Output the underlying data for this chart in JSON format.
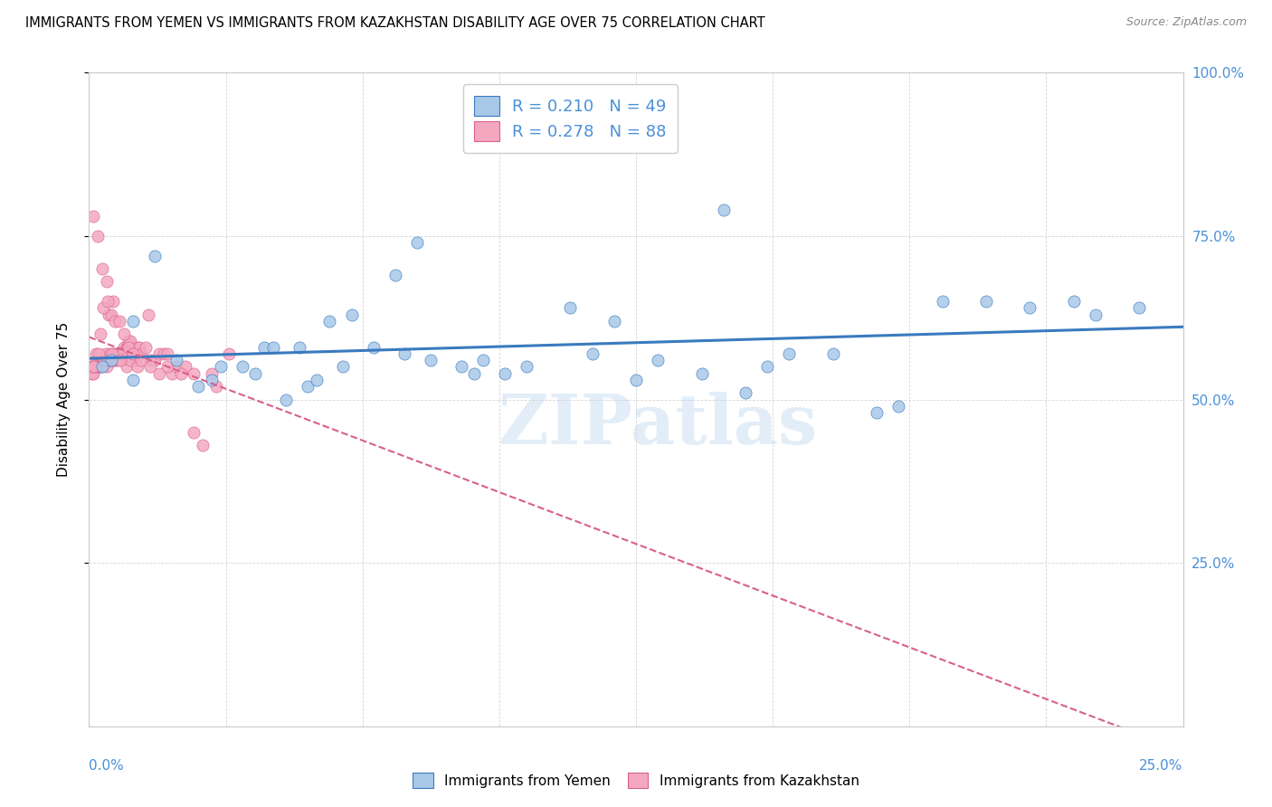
{
  "title": "IMMIGRANTS FROM YEMEN VS IMMIGRANTS FROM KAZAKHSTAN DISABILITY AGE OVER 75 CORRELATION CHART",
  "source": "Source: ZipAtlas.com",
  "ylabel": "Disability Age Over 75",
  "color_yemen": "#a8c8e8",
  "color_kazakhstan": "#f4a8c0",
  "color_trend_yemen": "#3a7abf",
  "color_trend_kazakhstan": "#d9608a",
  "color_text_blue": "#4a90d9",
  "watermark": "ZIPatlas",
  "yemen_x": [
    0.5,
    1.5,
    1.0,
    3.0,
    3.5,
    4.0,
    4.5,
    5.0,
    4.8,
    5.5,
    6.0,
    7.0,
    7.5,
    8.5,
    9.0,
    9.5,
    11.0,
    12.0,
    13.0,
    15.0,
    15.5,
    17.0,
    18.0,
    19.5,
    21.5,
    23.0,
    24.0,
    0.3,
    1.0,
    2.0,
    2.5,
    2.8,
    3.8,
    4.2,
    5.2,
    5.8,
    6.5,
    7.2,
    7.8,
    8.8,
    10.0,
    11.5,
    12.5,
    14.0,
    14.5,
    16.0,
    18.5,
    20.5,
    22.5
  ],
  "yemen_y": [
    56,
    72,
    62,
    55,
    55,
    58,
    50,
    52,
    58,
    62,
    63,
    69,
    74,
    55,
    56,
    54,
    64,
    62,
    56,
    51,
    55,
    57,
    48,
    65,
    64,
    63,
    64,
    55,
    53,
    56,
    52,
    53,
    54,
    58,
    53,
    55,
    58,
    57,
    56,
    54,
    55,
    57,
    53,
    54,
    79,
    57,
    49,
    65,
    65
  ],
  "kazakhstan_x": [
    0.05,
    0.07,
    0.1,
    0.12,
    0.15,
    0.18,
    0.2,
    0.22,
    0.25,
    0.28,
    0.3,
    0.32,
    0.35,
    0.38,
    0.4,
    0.42,
    0.45,
    0.48,
    0.5,
    0.52,
    0.55,
    0.58,
    0.6,
    0.62,
    0.65,
    0.68,
    0.7,
    0.72,
    0.75,
    0.78,
    0.8,
    0.85,
    0.88,
    0.9,
    0.95,
    1.0,
    1.05,
    1.1,
    1.15,
    1.2,
    1.3,
    1.35,
    1.4,
    1.5,
    1.6,
    1.7,
    1.8,
    1.9,
    2.0,
    2.2,
    2.4,
    2.6,
    2.9,
    3.2,
    0.08,
    0.15,
    0.25,
    0.35,
    0.45,
    0.55,
    0.65,
    0.75,
    0.85,
    0.95,
    1.1,
    0.1,
    0.2,
    0.3,
    0.4,
    0.5,
    0.6,
    0.7,
    0.8,
    0.9,
    1.0,
    1.2,
    1.4,
    1.6,
    1.8,
    2.1,
    2.4,
    2.8,
    0.12,
    0.22,
    0.32,
    0.42,
    0.52,
    0.72
  ],
  "kazakhstan_y": [
    55,
    54,
    54,
    55,
    55,
    56,
    55,
    55,
    55,
    56,
    55,
    56,
    56,
    57,
    55,
    56,
    56,
    57,
    56,
    56,
    57,
    56,
    56,
    57,
    57,
    57,
    57,
    57,
    57,
    57,
    58,
    58,
    58,
    59,
    59,
    57,
    56,
    58,
    58,
    57,
    58,
    63,
    56,
    56,
    57,
    57,
    57,
    54,
    55,
    55,
    45,
    43,
    52,
    57,
    55,
    57,
    60,
    56,
    63,
    65,
    56,
    57,
    55,
    56,
    55,
    78,
    75,
    70,
    68,
    63,
    62,
    62,
    60,
    58,
    57,
    56,
    55,
    54,
    55,
    54,
    54,
    54,
    55,
    57,
    64,
    65,
    57,
    56
  ],
  "xmin": 0.0,
  "xmax": 25.0,
  "ymin": 0.0,
  "ymax": 100.0,
  "ytick_labels": [
    "25.0%",
    "50.0%",
    "75.0%",
    "100.0%"
  ],
  "ytick_values": [
    25,
    50,
    75,
    100
  ],
  "xtick_left_label": "0.0%",
  "xtick_right_label": "25.0%",
  "legend1_text": "R = 0.210   N = 49",
  "legend2_text": "R = 0.278   N = 88",
  "bottom_legend": [
    "Immigrants from Yemen",
    "Immigrants from Kazakhstan"
  ]
}
